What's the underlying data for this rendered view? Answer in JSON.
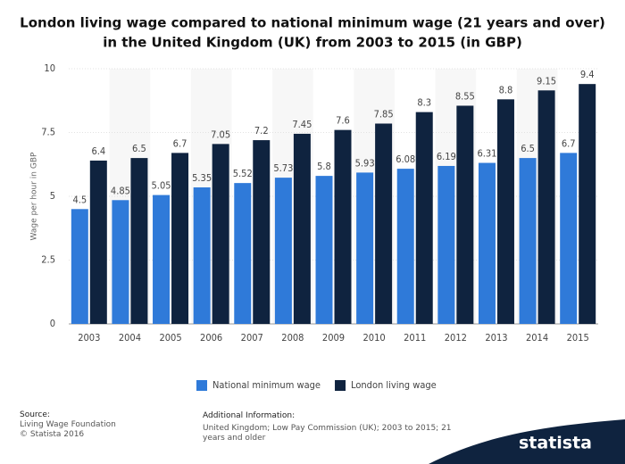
{
  "chart_data": {
    "type": "bar",
    "title": [
      "London living wage compared to national minimum wage (21 years and over)",
      "in the United Kingdom (UK) from 2003 to 2015 (in GBP)"
    ],
    "y_label": "Wage per hour in GBP",
    "categories": [
      "2003",
      "2004",
      "2005",
      "2006",
      "2007",
      "2008",
      "2009",
      "2010",
      "2011",
      "2012",
      "2013",
      "2014",
      "2015"
    ],
    "series": [
      {
        "name": "National minimum wage",
        "color": "#2f7ad9",
        "values": [
          4.5,
          4.85,
          5.05,
          5.35,
          5.52,
          5.73,
          5.8,
          5.93,
          6.08,
          6.19,
          6.31,
          6.5,
          6.7
        ]
      },
      {
        "name": "London living wage",
        "color": "#0f233f",
        "values": [
          6.4,
          6.5,
          6.7,
          7.05,
          7.2,
          7.45,
          7.6,
          7.85,
          8.3,
          8.55,
          8.8,
          9.15,
          9.4
        ]
      }
    ],
    "ylim": [
      0,
      10
    ],
    "yticks": [
      0,
      2.5,
      5,
      7.5,
      10
    ],
    "grid": true,
    "legend": "bottom"
  },
  "footer": {
    "source_heading": "Source:",
    "source_lines": [
      "Living Wage Foundation",
      "© Statista 2016"
    ],
    "info_heading": "Additional Information:",
    "info_text": "United Kingdom; Low Pay Commission (UK); 2003 to 2015; 21 years and older",
    "brand": "statista"
  }
}
